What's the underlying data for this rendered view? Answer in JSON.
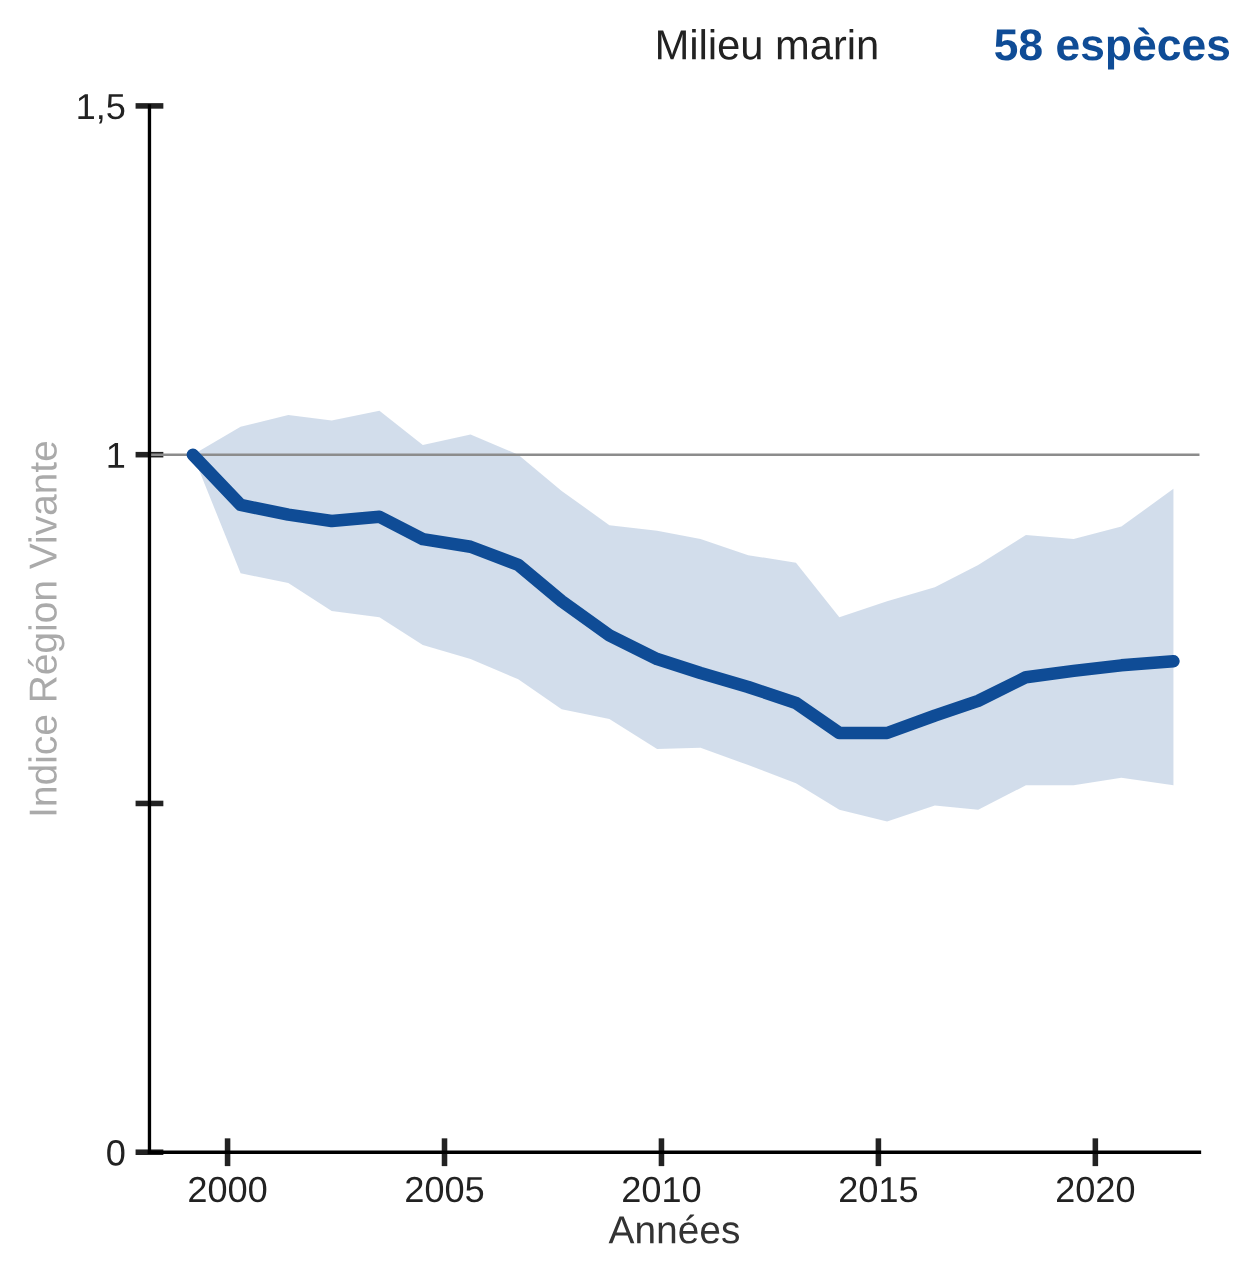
{
  "chart_data": {
    "type": "line",
    "title": "Milieu marin",
    "subtitle": "58 espèces",
    "xlabel": "Années",
    "ylabel": "Indice Région Vivante",
    "series": [
      {
        "color": "#0f4c96",
        "x": [
          1999.2,
          2000.3,
          2001.4,
          2002.4,
          2003.5,
          2004.5,
          2005.6,
          2006.7,
          2007.7,
          2008.8,
          2009.9,
          2010.9,
          2012.0,
          2013.1,
          2014.1,
          2015.2,
          2016.3,
          2017.3,
          2018.4,
          2019.5,
          2020.6,
          2021.8
        ],
        "values": [
          1.0,
          0.928,
          0.914,
          0.905,
          0.911,
          0.879,
          0.868,
          0.842,
          0.79,
          0.741,
          0.707,
          0.687,
          0.667,
          0.644,
          0.601,
          0.601,
          0.626,
          0.647,
          0.681,
          0.69,
          0.698,
          0.704
        ],
        "upper": [
          1.0,
          1.04,
          1.057,
          1.049,
          1.063,
          1.014,
          1.029,
          1.0,
          0.948,
          0.899,
          0.891,
          0.879,
          0.856,
          0.845,
          0.767,
          0.79,
          0.81,
          0.842,
          0.885,
          0.879,
          0.897,
          0.951
        ],
        "lower": [
          1.0,
          0.83,
          0.816,
          0.776,
          0.767,
          0.727,
          0.707,
          0.678,
          0.635,
          0.621,
          0.578,
          0.58,
          0.555,
          0.529,
          0.491,
          0.474,
          0.497,
          0.491,
          0.526,
          0.526,
          0.537,
          0.526
        ]
      }
    ],
    "xlim": [
      1998.2,
      2022.4
    ],
    "xticks": [
      2000,
      2005,
      2010,
      2015,
      2020
    ],
    "ylim": [
      0,
      1.5
    ],
    "yticks": [
      0,
      {
        "value": 0.5,
        "label": null
      },
      1,
      {
        "value": 1.5,
        "label": "1,5"
      }
    ],
    "ref_lines": [
      {
        "axis": "y",
        "value": 1,
        "color": "#8c8c8c"
      }
    ],
    "grid": false,
    "legend": false,
    "marker": "none",
    "line_style": "solid"
  }
}
